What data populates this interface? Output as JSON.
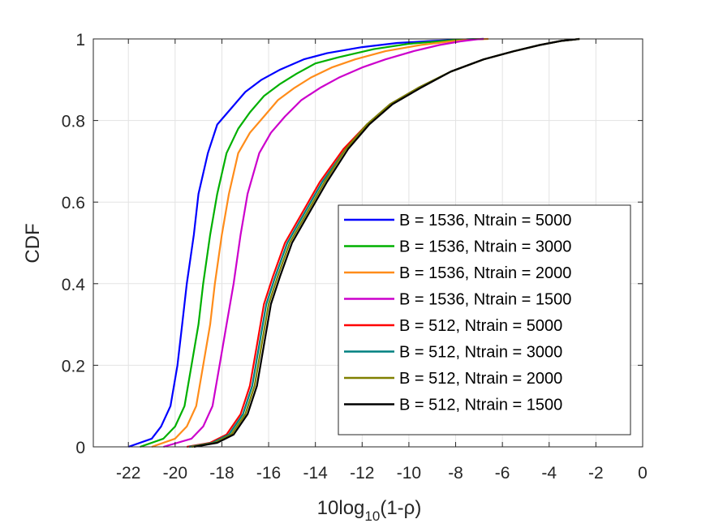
{
  "chart_data": {
    "type": "line",
    "title": "",
    "xlabel_main": "10log",
    "xlabel_sub": "10",
    "xlabel_tail": "(1-ρ)",
    "ylabel": "CDF",
    "xlim": [
      -23.5,
      0
    ],
    "ylim": [
      0,
      1
    ],
    "grid": true,
    "legend_position": "inside-right",
    "x_ticks": [
      -22,
      -20,
      -18,
      -16,
      -14,
      -12,
      -10,
      -8,
      -6,
      -4,
      -2,
      0
    ],
    "y_ticks": [
      0,
      0.2,
      0.4,
      0.6,
      0.8,
      1
    ],
    "x_tick_labels": [
      "-22",
      "-20",
      "-18",
      "-16",
      "-14",
      "-12",
      "-10",
      "-8",
      "-6",
      "-4",
      "-2",
      "0"
    ],
    "y_tick_labels": [
      "0",
      "0.2",
      "0.4",
      "0.6",
      "0.8",
      "1"
    ],
    "series": [
      {
        "name": "B = 1536, Ntrain = 5000",
        "color": "#0000ff",
        "x": [
          -22.0,
          -21.0,
          -20.6,
          -20.2,
          -19.9,
          -19.7,
          -19.5,
          -19.2,
          -19.0,
          -18.6,
          -18.2,
          -17.6,
          -17.0,
          -16.3,
          -15.5,
          -14.5,
          -13.5,
          -12.0,
          -10.5,
          -9.0,
          -7.5,
          -6.8
        ],
        "y": [
          0.0,
          0.02,
          0.05,
          0.1,
          0.2,
          0.3,
          0.4,
          0.52,
          0.62,
          0.72,
          0.79,
          0.83,
          0.87,
          0.9,
          0.925,
          0.95,
          0.965,
          0.98,
          0.99,
          0.995,
          0.999,
          1.0
        ]
      },
      {
        "name": "B = 1536, Ntrain = 3000",
        "color": "#00b000",
        "x": [
          -21.5,
          -20.5,
          -20.0,
          -19.6,
          -19.3,
          -19.0,
          -18.8,
          -18.5,
          -18.2,
          -17.8,
          -17.3,
          -16.8,
          -16.2,
          -15.5,
          -14.8,
          -14.0,
          -13.0,
          -11.5,
          -10.0,
          -8.5,
          -7.5,
          -6.8
        ],
        "y": [
          0.0,
          0.02,
          0.05,
          0.1,
          0.2,
          0.3,
          0.4,
          0.52,
          0.62,
          0.72,
          0.78,
          0.82,
          0.86,
          0.89,
          0.915,
          0.94,
          0.955,
          0.975,
          0.988,
          0.995,
          0.999,
          1.0
        ]
      },
      {
        "name": "B = 1536, Ntrain = 2000",
        "color": "#ff8c1a",
        "x": [
          -21.0,
          -20.0,
          -19.5,
          -19.1,
          -18.8,
          -18.5,
          -18.3,
          -18.0,
          -17.7,
          -17.3,
          -16.8,
          -16.2,
          -15.6,
          -14.9,
          -14.2,
          -13.3,
          -12.3,
          -11.0,
          -9.5,
          -8.2,
          -7.2,
          -6.6
        ],
        "y": [
          0.0,
          0.02,
          0.05,
          0.1,
          0.2,
          0.3,
          0.4,
          0.52,
          0.62,
          0.72,
          0.77,
          0.81,
          0.85,
          0.88,
          0.905,
          0.93,
          0.95,
          0.97,
          0.985,
          0.994,
          0.999,
          1.0
        ]
      },
      {
        "name": "B = 1536, Ntrain = 1500",
        "color": "#cc00cc",
        "x": [
          -20.5,
          -19.3,
          -18.8,
          -18.4,
          -18.1,
          -17.8,
          -17.5,
          -17.2,
          -16.9,
          -16.4,
          -15.9,
          -15.3,
          -14.6,
          -13.8,
          -13.0,
          -12.0,
          -11.0,
          -9.8,
          -8.7,
          -7.8,
          -7.1,
          -6.8
        ],
        "y": [
          0.0,
          0.02,
          0.05,
          0.1,
          0.2,
          0.3,
          0.4,
          0.52,
          0.62,
          0.72,
          0.77,
          0.81,
          0.85,
          0.88,
          0.905,
          0.93,
          0.95,
          0.97,
          0.985,
          0.994,
          0.999,
          1.0
        ]
      },
      {
        "name": "B = 512, Ntrain = 5000",
        "color": "#ff0000",
        "x": [
          -19.5,
          -18.5,
          -17.8,
          -17.2,
          -16.8,
          -16.5,
          -16.2,
          -15.8,
          -15.3,
          -14.6,
          -13.8,
          -12.8,
          -11.8,
          -10.8,
          -9.6,
          -8.2,
          -6.8,
          -5.5,
          -4.4,
          -3.5,
          -2.7
        ],
        "y": [
          0.0,
          0.01,
          0.03,
          0.08,
          0.15,
          0.25,
          0.35,
          0.42,
          0.5,
          0.57,
          0.65,
          0.73,
          0.79,
          0.84,
          0.88,
          0.92,
          0.95,
          0.97,
          0.985,
          0.995,
          1.0
        ]
      },
      {
        "name": "B = 512, Ntrain = 3000",
        "color": "#008080",
        "x": [
          -19.4,
          -18.4,
          -17.7,
          -17.1,
          -16.7,
          -16.4,
          -16.1,
          -15.7,
          -15.2,
          -14.5,
          -13.7,
          -12.7,
          -11.8,
          -10.8,
          -9.6,
          -8.2,
          -6.8,
          -5.5,
          -4.4,
          -3.5,
          -2.7
        ],
        "y": [
          0.0,
          0.01,
          0.03,
          0.08,
          0.15,
          0.25,
          0.35,
          0.42,
          0.5,
          0.57,
          0.65,
          0.73,
          0.79,
          0.84,
          0.88,
          0.92,
          0.95,
          0.97,
          0.985,
          0.995,
          1.0
        ]
      },
      {
        "name": "B = 512, Ntrain = 2000",
        "color": "#808000",
        "x": [
          -19.3,
          -18.3,
          -17.6,
          -17.0,
          -16.6,
          -16.3,
          -16.0,
          -15.6,
          -15.1,
          -14.4,
          -13.6,
          -12.7,
          -11.8,
          -10.8,
          -9.6,
          -8.2,
          -6.8,
          -5.5,
          -4.4,
          -3.5,
          -2.7
        ],
        "y": [
          0.0,
          0.01,
          0.03,
          0.08,
          0.15,
          0.25,
          0.35,
          0.42,
          0.5,
          0.57,
          0.65,
          0.73,
          0.79,
          0.84,
          0.88,
          0.92,
          0.95,
          0.97,
          0.985,
          0.995,
          1.0
        ]
      },
      {
        "name": "B = 512, Ntrain = 1500",
        "color": "#000000",
        "x": [
          -19.2,
          -18.2,
          -17.5,
          -16.9,
          -16.5,
          -16.2,
          -15.9,
          -15.5,
          -15.0,
          -14.3,
          -13.5,
          -12.6,
          -11.7,
          -10.7,
          -9.5,
          -8.2,
          -6.8,
          -5.5,
          -4.4,
          -3.5,
          -2.7
        ],
        "y": [
          0.0,
          0.01,
          0.03,
          0.08,
          0.15,
          0.25,
          0.35,
          0.42,
          0.5,
          0.57,
          0.65,
          0.73,
          0.79,
          0.84,
          0.88,
          0.92,
          0.95,
          0.97,
          0.985,
          0.995,
          1.0
        ]
      }
    ]
  }
}
